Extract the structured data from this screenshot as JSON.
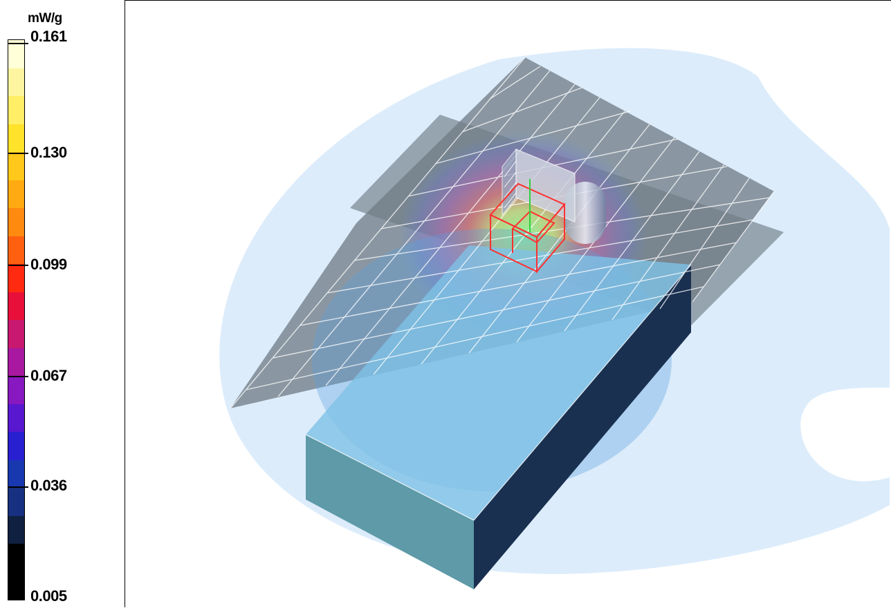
{
  "legend": {
    "unit": "mW/g",
    "ticks": [
      "0.161",
      "0.130",
      "0.099",
      "0.067",
      "0.036",
      "0.005"
    ],
    "bands": [
      "#ffffd8",
      "#fff5a0",
      "#ffee66",
      "#ffe22a",
      "#ffc81a",
      "#ffaa10",
      "#ff8a10",
      "#ff6010",
      "#ff2a10",
      "#e8103a",
      "#c81870",
      "#a818a0",
      "#8818c0",
      "#5818d0",
      "#2820d0",
      "#1838b0",
      "#183080",
      "#102040",
      "#000000",
      "#000000"
    ]
  },
  "view": {
    "colors": {
      "outer_region": "#dcecfb",
      "phantom_plane": "#6f7b84",
      "box_top": "#7ec2e6",
      "box_front": "#5e9aa8",
      "box_side": "#1a3050",
      "device_wire": "#ff3030",
      "hotspot": "#c060c0"
    }
  }
}
